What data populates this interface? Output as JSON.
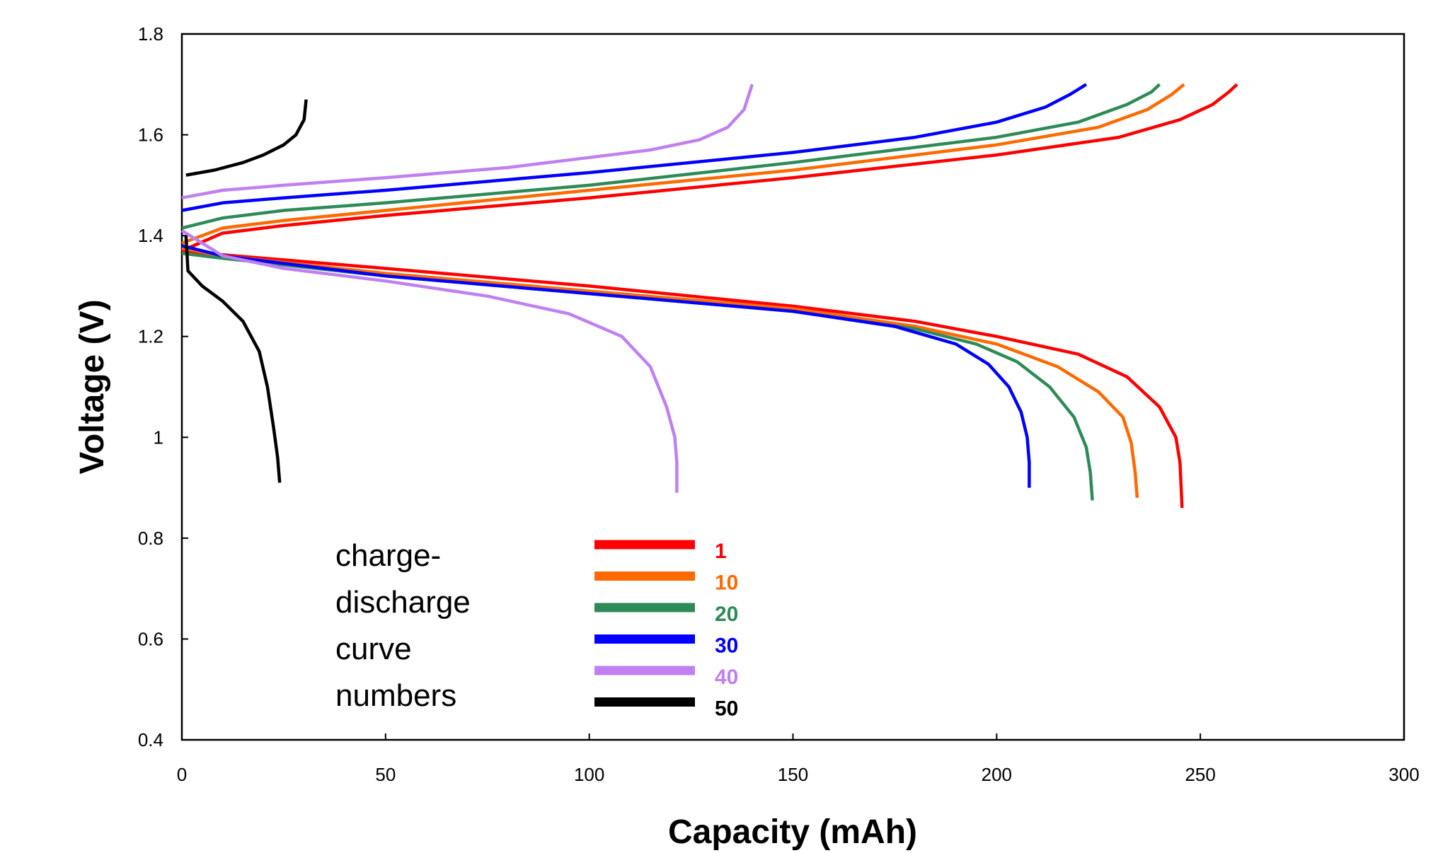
{
  "chart_data": {
    "type": "line",
    "xlabel": "Capacity (mAh)",
    "ylabel": "Voltage (V)",
    "xlim": [
      0,
      300
    ],
    "ylim": [
      0.4,
      1.8
    ],
    "xticks": [
      0,
      50,
      100,
      150,
      200,
      250,
      300
    ],
    "xtick_labels": [
      "0",
      "50",
      "100",
      "150",
      "200",
      "250",
      "300"
    ],
    "yticks": [
      0.4,
      0.6,
      0.8,
      1.0,
      1.2,
      1.4,
      1.6,
      1.8
    ],
    "ytick_labels": [
      "0.4",
      "0.6",
      "0.8",
      "1",
      "1.2",
      "1.4",
      "1.6",
      "1.8"
    ],
    "grid": false,
    "legend": {
      "title_lines": [
        "charge-",
        "discharge",
        "curve",
        "numbers"
      ],
      "placement": "bottom-left"
    },
    "series": [
      {
        "name": "1",
        "color": "#ff0000",
        "charge": [
          [
            0,
            1.37
          ],
          [
            10,
            1.405
          ],
          [
            25,
            1.42
          ],
          [
            50,
            1.44
          ],
          [
            100,
            1.475
          ],
          [
            150,
            1.515
          ],
          [
            200,
            1.56
          ],
          [
            230,
            1.595
          ],
          [
            245,
            1.63
          ],
          [
            253,
            1.66
          ],
          [
            257,
            1.685
          ],
          [
            259,
            1.7
          ]
        ],
        "discharge": [
          [
            0,
            1.37
          ],
          [
            10,
            1.362
          ],
          [
            50,
            1.335
          ],
          [
            100,
            1.3
          ],
          [
            150,
            1.26
          ],
          [
            180,
            1.23
          ],
          [
            200,
            1.2
          ],
          [
            220,
            1.165
          ],
          [
            232,
            1.12
          ],
          [
            240,
            1.06
          ],
          [
            244,
            1.0
          ],
          [
            245,
            0.95
          ],
          [
            245.5,
            0.86
          ]
        ]
      },
      {
        "name": "10",
        "color": "#ff6a00",
        "charge": [
          [
            0,
            1.385
          ],
          [
            10,
            1.415
          ],
          [
            25,
            1.43
          ],
          [
            50,
            1.45
          ],
          [
            100,
            1.49
          ],
          [
            150,
            1.53
          ],
          [
            200,
            1.58
          ],
          [
            225,
            1.615
          ],
          [
            237,
            1.65
          ],
          [
            243,
            1.68
          ],
          [
            246,
            1.7
          ]
        ],
        "discharge": [
          [
            0,
            1.375
          ],
          [
            10,
            1.36
          ],
          [
            50,
            1.325
          ],
          [
            100,
            1.29
          ],
          [
            150,
            1.255
          ],
          [
            180,
            1.22
          ],
          [
            200,
            1.185
          ],
          [
            215,
            1.14
          ],
          [
            225,
            1.09
          ],
          [
            231,
            1.04
          ],
          [
            233,
            0.99
          ],
          [
            234,
            0.93
          ],
          [
            234.5,
            0.88
          ]
        ]
      },
      {
        "name": "20",
        "color": "#2e8b57",
        "charge": [
          [
            0,
            1.415
          ],
          [
            10,
            1.435
          ],
          [
            25,
            1.45
          ],
          [
            50,
            1.465
          ],
          [
            100,
            1.5
          ],
          [
            150,
            1.545
          ],
          [
            200,
            1.595
          ],
          [
            220,
            1.625
          ],
          [
            232,
            1.66
          ],
          [
            238,
            1.685
          ],
          [
            240,
            1.7
          ]
        ],
        "discharge": [
          [
            0,
            1.365
          ],
          [
            10,
            1.355
          ],
          [
            50,
            1.32
          ],
          [
            100,
            1.285
          ],
          [
            150,
            1.25
          ],
          [
            180,
            1.215
          ],
          [
            195,
            1.185
          ],
          [
            205,
            1.15
          ],
          [
            213,
            1.1
          ],
          [
            219,
            1.04
          ],
          [
            222,
            0.98
          ],
          [
            223,
            0.93
          ],
          [
            223.5,
            0.875
          ]
        ]
      },
      {
        "name": "30",
        "color": "#0000ff",
        "charge": [
          [
            0,
            1.45
          ],
          [
            10,
            1.465
          ],
          [
            25,
            1.475
          ],
          [
            50,
            1.49
          ],
          [
            100,
            1.525
          ],
          [
            150,
            1.565
          ],
          [
            180,
            1.595
          ],
          [
            200,
            1.625
          ],
          [
            212,
            1.655
          ],
          [
            218,
            1.68
          ],
          [
            222,
            1.7
          ]
        ],
        "discharge": [
          [
            0,
            1.38
          ],
          [
            10,
            1.36
          ],
          [
            50,
            1.32
          ],
          [
            100,
            1.285
          ],
          [
            150,
            1.25
          ],
          [
            175,
            1.22
          ],
          [
            190,
            1.185
          ],
          [
            198,
            1.145
          ],
          [
            203,
            1.1
          ],
          [
            206,
            1.05
          ],
          [
            207.5,
            1.0
          ],
          [
            208,
            0.95
          ],
          [
            208,
            0.9
          ]
        ]
      },
      {
        "name": "40",
        "color": "#c080f0",
        "charge": [
          [
            0,
            1.475
          ],
          [
            10,
            1.49
          ],
          [
            25,
            1.5
          ],
          [
            50,
            1.515
          ],
          [
            80,
            1.535
          ],
          [
            100,
            1.555
          ],
          [
            115,
            1.57
          ],
          [
            127,
            1.59
          ],
          [
            134,
            1.615
          ],
          [
            138,
            1.65
          ],
          [
            140,
            1.7
          ]
        ],
        "discharge": [
          [
            0,
            1.41
          ],
          [
            10,
            1.36
          ],
          [
            25,
            1.335
          ],
          [
            50,
            1.31
          ],
          [
            75,
            1.28
          ],
          [
            95,
            1.245
          ],
          [
            108,
            1.2
          ],
          [
            115,
            1.14
          ],
          [
            119,
            1.06
          ],
          [
            121,
            1.0
          ],
          [
            121.5,
            0.95
          ],
          [
            121.5,
            0.89
          ]
        ]
      },
      {
        "name": "50",
        "color": "#000000",
        "charge": [
          [
            1,
            1.52
          ],
          [
            8,
            1.53
          ],
          [
            15,
            1.545
          ],
          [
            20,
            1.56
          ],
          [
            25,
            1.58
          ],
          [
            28,
            1.6
          ],
          [
            30,
            1.63
          ],
          [
            30.5,
            1.67
          ]
        ],
        "discharge": [
          [
            1,
            1.4
          ],
          [
            1.5,
            1.33
          ],
          [
            5,
            1.3
          ],
          [
            10,
            1.27
          ],
          [
            15,
            1.23
          ],
          [
            19,
            1.17
          ],
          [
            21,
            1.1
          ],
          [
            22.5,
            1.02
          ],
          [
            23.5,
            0.96
          ],
          [
            24,
            0.91
          ]
        ]
      }
    ]
  }
}
